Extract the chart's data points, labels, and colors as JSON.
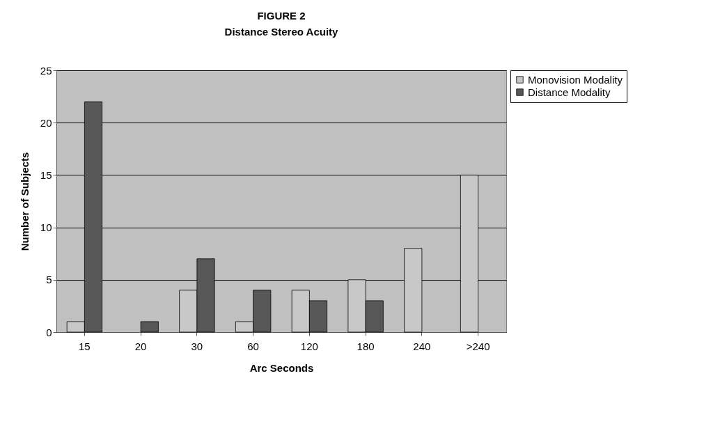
{
  "chart_data": {
    "type": "bar",
    "title": "FIGURE 2",
    "subtitle": "Distance Stereo Acuity",
    "xlabel": "Arc Seconds",
    "ylabel": "Number of Subjects",
    "categories": [
      "15",
      "20",
      "30",
      "60",
      "120",
      "180",
      "240",
      ">240"
    ],
    "series": [
      {
        "name": "Monovision Modality",
        "color": "#c8c8c8",
        "values": [
          1,
          0,
          4,
          1,
          4,
          5,
          8,
          15
        ]
      },
      {
        "name": "Distance Modality",
        "color": "#575757",
        "values": [
          22,
          1,
          7,
          4,
          3,
          3,
          0,
          0
        ]
      }
    ],
    "ylim": [
      0,
      25
    ],
    "yticks": [
      0,
      5,
      10,
      15,
      20,
      25
    ],
    "grid": "y",
    "legend": "right"
  }
}
